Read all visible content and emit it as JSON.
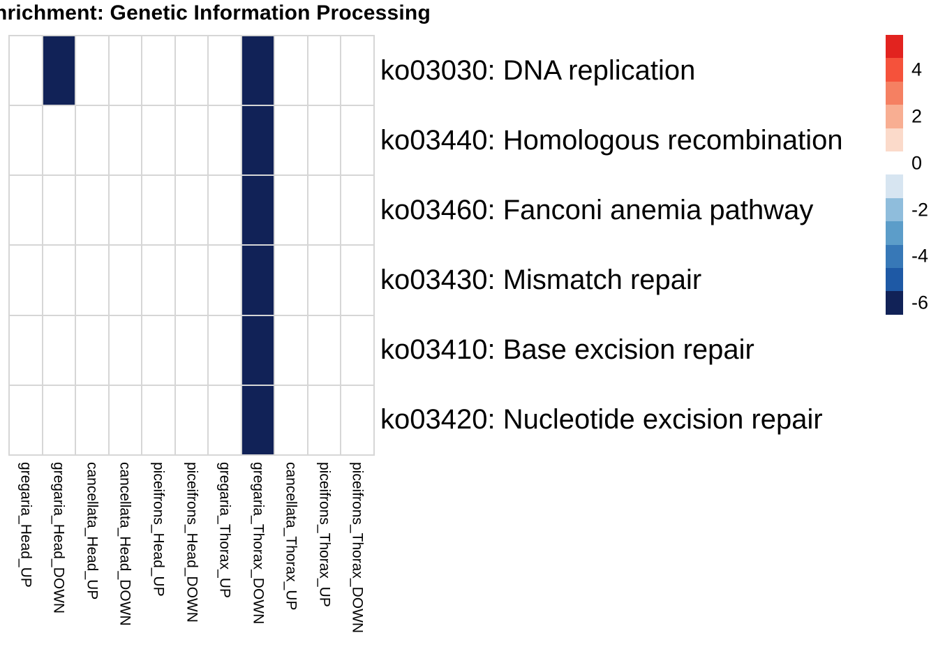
{
  "chart_data": {
    "type": "heatmap",
    "title": "nrichment: Genetic Information Processing",
    "columns": [
      "gregaria_Head_UP",
      "gregaria_Head_DOWN",
      "cancellata_Head_UP",
      "cancellata_Head_DOWN",
      "piceifrons_Head_UP",
      "piceifrons_Head_DOWN",
      "gregaria_Thorax_UP",
      "gregaria_Thorax_DOWN",
      "cancellata_Thorax_UP",
      "piceifrons_Thorax_UP",
      "piceifrons_Thorax_DOWN"
    ],
    "rows": [
      "ko03030: DNA replication",
      "ko03440: Homologous recombination",
      "ko03460: Fanconi anemia pathway",
      "ko03430: Mismatch repair",
      "ko03410: Base excision repair",
      "ko03420: Nucleotide excision repair"
    ],
    "values": [
      [
        0,
        -6,
        0,
        0,
        0,
        0,
        0,
        -6,
        0,
        0,
        0
      ],
      [
        0,
        0,
        0,
        0,
        0,
        0,
        0,
        -6,
        0,
        0,
        0
      ],
      [
        0,
        0,
        0,
        0,
        0,
        0,
        0,
        -6,
        0,
        0,
        0
      ],
      [
        0,
        0,
        0,
        0,
        0,
        0,
        0,
        -6,
        0,
        0,
        0
      ],
      [
        0,
        0,
        0,
        0,
        0,
        0,
        0,
        -6,
        0,
        0,
        0
      ],
      [
        0,
        0,
        0,
        0,
        0,
        0,
        0,
        -6,
        0,
        0,
        0
      ]
    ],
    "colorbar": {
      "tick_labels": [
        "4",
        "2",
        "0",
        "-2",
        "-4",
        "-6"
      ],
      "tick_values": [
        4,
        2,
        0,
        -2,
        -4,
        -6
      ],
      "domain": [
        5,
        -6
      ],
      "block_values": [
        5,
        4,
        3,
        2,
        1,
        0,
        -1,
        -2,
        -3,
        -4,
        -5,
        -6
      ],
      "block_colors": [
        "#E2231F",
        "#F5523B",
        "#F58062",
        "#F8AE92",
        "#FBDACA",
        "#FFFFFF",
        "#D7E5F1",
        "#8FBDDC",
        "#5C9DC9",
        "#3778B7",
        "#1E59A5",
        "#112257"
      ],
      "position": "right"
    },
    "colors": {
      "cell_filled": "#112257",
      "cell_empty": "#FFFFFF",
      "gridline": "#D6D6D6",
      "text": "#000000"
    },
    "grid": true,
    "legend_position": "right"
  }
}
